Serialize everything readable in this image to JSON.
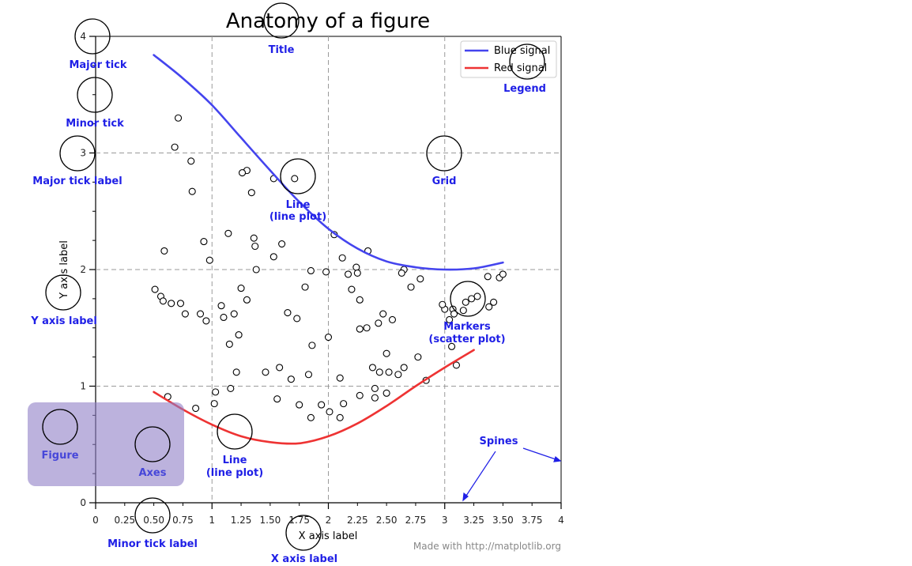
{
  "chart_data": {
    "type": "line",
    "title": "Anatomy of a figure",
    "xlabel": "X axis label",
    "ylabel": "Y axis label",
    "xlim": [
      0,
      4
    ],
    "ylim": [
      0,
      4
    ],
    "grid": true,
    "legend_position": "top-right",
    "x_major_ticks": [
      0,
      1,
      2,
      3,
      4
    ],
    "x_major_tick_labels": [
      "0",
      "1",
      "2",
      "3",
      "4"
    ],
    "x_minor_ticks": [
      0.25,
      0.5,
      0.75,
      1.25,
      1.5,
      1.75,
      2.25,
      2.5,
      2.75,
      3.25,
      3.5,
      3.75
    ],
    "x_minor_tick_labels": [
      "0.25",
      "0.50",
      "0.75",
      "1.25",
      "1.50",
      "1.75",
      "2.25",
      "2.50",
      "2.75",
      "3.25",
      "3.50",
      "3.75"
    ],
    "y_major_ticks": [
      0,
      1,
      2,
      3,
      4
    ],
    "y_major_tick_labels": [
      "0",
      "1",
      "2",
      "3",
      "4"
    ],
    "y_minor_ticks": [
      0.25,
      0.5,
      0.75,
      1.25,
      1.5,
      1.75,
      2.25,
      2.5,
      2.75,
      3.25,
      3.5,
      3.75
    ],
    "series": [
      {
        "name": "Blue signal",
        "color": "#4444ee",
        "kind": "line",
        "x": [
          0.5,
          0.75,
          1.0,
          1.25,
          1.5,
          1.75,
          2.0,
          2.25,
          2.5,
          2.75,
          3.0,
          3.25,
          3.5
        ],
        "y": [
          3.84,
          3.64,
          3.41,
          3.13,
          2.85,
          2.58,
          2.35,
          2.18,
          2.07,
          2.02,
          2.0,
          2.01,
          2.06
        ]
      },
      {
        "name": "Red signal",
        "color": "#ee3333",
        "kind": "line",
        "x": [
          0.5,
          0.75,
          1.0,
          1.25,
          1.5,
          1.75,
          2.0,
          2.25,
          2.5,
          2.75,
          3.0,
          3.25
        ],
        "y": [
          0.95,
          0.8,
          0.67,
          0.57,
          0.52,
          0.51,
          0.57,
          0.68,
          0.83,
          1.0,
          1.16,
          1.31
        ]
      }
    ],
    "scatter": {
      "kind": "scatter",
      "x": [
        0.71,
        0.68,
        0.82,
        0.83,
        0.59,
        0.93,
        0.98,
        1.3,
        1.26,
        1.34,
        1.14,
        1.53,
        1.36,
        1.6,
        1.71,
        2.05,
        2.12,
        1.85,
        1.53,
        1.37,
        1.38,
        2.24,
        2.34,
        2.17,
        2.65,
        2.79,
        2.63,
        0.51,
        0.56,
        0.58,
        0.65,
        0.73,
        0.77,
        0.9,
        0.95,
        1.08,
        1.1,
        1.15,
        1.23,
        1.21,
        1.25,
        1.19,
        1.3,
        1.65,
        1.73,
        1.8,
        1.98,
        2.2,
        2.25,
        2.27,
        2.43,
        2.47,
        2.55,
        2.71,
        3.0,
        3.07,
        3.08,
        3.18,
        3.28,
        3.38,
        3.42,
        3.47,
        3.5,
        3.37,
        3.23,
        3.16,
        3.04,
        2.98,
        1.03,
        1.16,
        1.68,
        1.83,
        2.1,
        2.4,
        2.5,
        2.6,
        2.84,
        3.1,
        3.06,
        2.77,
        2.65,
        2.52,
        2.38,
        2.44,
        2.4,
        2.27,
        2.1,
        2.13,
        2.01,
        1.85,
        1.94,
        1.75,
        1.56,
        1.46,
        1.58,
        1.86,
        2.0,
        2.27,
        2.33,
        2.5,
        0.62,
        0.86,
        1.02
      ],
      "y": [
        3.3,
        3.05,
        2.93,
        2.67,
        2.16,
        2.24,
        2.08,
        2.85,
        2.83,
        2.66,
        2.31,
        2.78,
        2.27,
        2.22,
        2.78,
        2.3,
        2.1,
        1.99,
        2.11,
        2.2,
        2.0,
        2.02,
        2.16,
        1.96,
        2.0,
        1.92,
        1.97,
        1.83,
        1.77,
        1.73,
        1.71,
        1.71,
        1.62,
        1.62,
        1.56,
        1.69,
        1.59,
        1.36,
        1.44,
        1.12,
        1.84,
        1.62,
        1.74,
        1.63,
        1.58,
        1.85,
        1.98,
        1.83,
        1.97,
        1.74,
        1.54,
        1.62,
        1.57,
        1.85,
        1.66,
        1.66,
        1.62,
        1.72,
        1.77,
        1.68,
        1.72,
        1.93,
        1.96,
        1.94,
        1.75,
        1.65,
        1.57,
        1.7,
        0.95,
        0.98,
        1.06,
        1.1,
        1.07,
        0.98,
        0.94,
        1.1,
        1.05,
        1.18,
        1.34,
        1.25,
        1.16,
        1.12,
        1.16,
        1.12,
        0.9,
        0.92,
        0.73,
        0.85,
        0.78,
        0.73,
        0.84,
        0.84,
        0.89,
        1.12,
        1.16,
        1.35,
        1.42,
        1.49,
        1.5,
        1.28,
        0.91,
        0.81,
        0.85
      ]
    },
    "legend_entries": [
      "Blue signal",
      "Red signal"
    ],
    "annotations": {
      "title": "Title",
      "major_tick": "Major tick",
      "minor_tick": "Minor tick",
      "major_tick_label": "Major tick label",
      "grid": "Grid",
      "legend": "Legend",
      "line_blue": [
        "Line",
        "(line plot)"
      ],
      "markers": [
        "Markers",
        "(scatter plot)"
      ],
      "y_axis_label": "Y axis label",
      "figure": "Figure",
      "axes": "Axes",
      "line_red": [
        "Line",
        "(line plot)"
      ],
      "spines": "Spines",
      "minor_tick_label": "Minor tick label",
      "x_axis_label": "X axis label"
    },
    "credit": "Made with http://matplotlib.org"
  }
}
